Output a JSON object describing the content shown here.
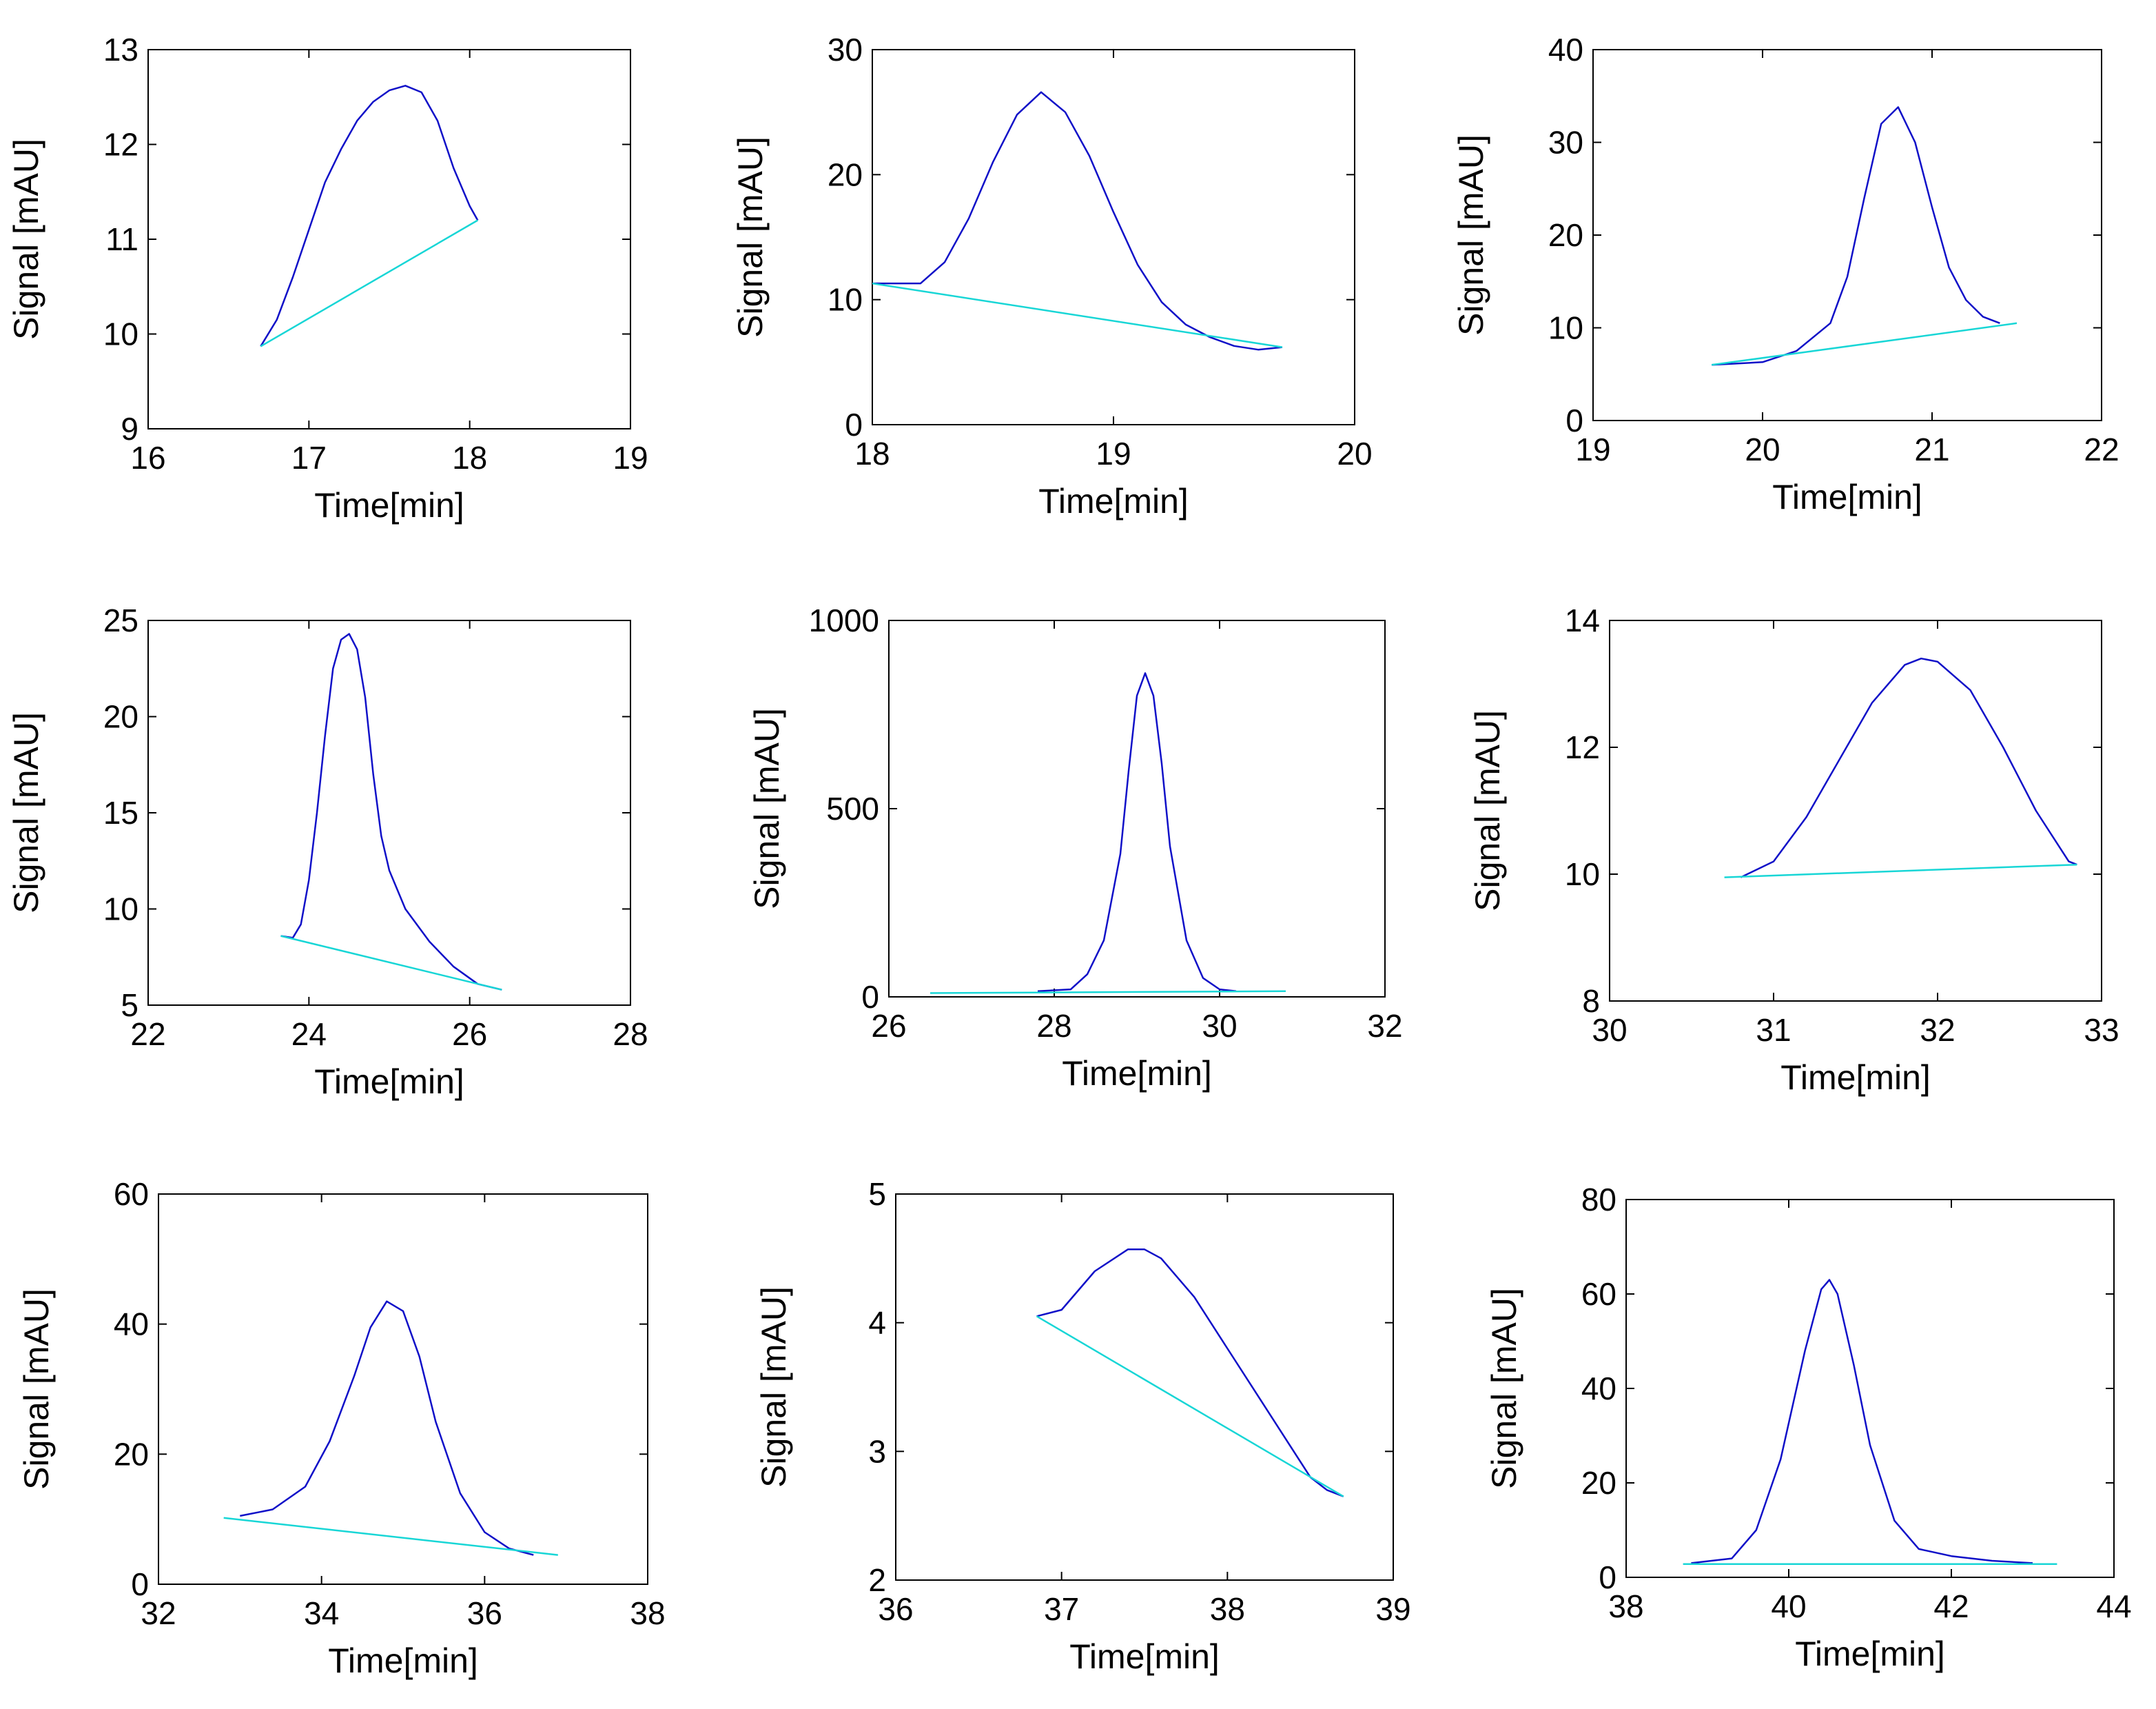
{
  "figure": {
    "colors": {
      "peak": "#1010c8",
      "baseline": "#18d6d6",
      "axes": "#000000"
    }
  },
  "chart_data": [
    {
      "type": "line",
      "xlabel": "Time[min]",
      "ylabel": "Signal [mAU]",
      "xlim": [
        16,
        19
      ],
      "ylim": [
        9,
        13
      ],
      "xticks": [
        "16",
        "17",
        "18",
        "19"
      ],
      "yticks": [
        "9",
        "10",
        "11",
        "12",
        "13"
      ],
      "series": [
        {
          "name": "peak",
          "x": [
            16.7,
            16.8,
            16.9,
            17.0,
            17.1,
            17.2,
            17.3,
            17.4,
            17.5,
            17.6,
            17.7,
            17.8,
            17.9,
            18.0,
            18.05
          ],
          "y": [
            9.87,
            10.15,
            10.6,
            11.1,
            11.6,
            11.95,
            12.25,
            12.45,
            12.57,
            12.62,
            12.55,
            12.25,
            11.75,
            11.35,
            11.2
          ]
        },
        {
          "name": "baseline",
          "x": [
            16.7,
            18.05
          ],
          "y": [
            9.87,
            11.2
          ]
        }
      ]
    },
    {
      "type": "line",
      "xlabel": "Time[min]",
      "ylabel": "Signal [mAU]",
      "xlim": [
        18,
        20
      ],
      "ylim": [
        0,
        30
      ],
      "xticks": [
        "18",
        "19",
        "20"
      ],
      "yticks": [
        "0",
        "10",
        "20",
        "30"
      ],
      "series": [
        {
          "name": "peak",
          "x": [
            18.0,
            18.2,
            18.3,
            18.4,
            18.5,
            18.6,
            18.7,
            18.8,
            18.9,
            19.0,
            19.1,
            19.2,
            19.3,
            19.4,
            19.5,
            19.6,
            19.7
          ],
          "y": [
            11.3,
            11.3,
            13.0,
            16.5,
            21.0,
            24.8,
            26.6,
            25.0,
            21.5,
            17.0,
            12.8,
            9.8,
            8.0,
            7.0,
            6.3,
            6.0,
            6.2
          ]
        },
        {
          "name": "baseline",
          "x": [
            18.0,
            19.7
          ],
          "y": [
            11.3,
            6.2
          ]
        }
      ]
    },
    {
      "type": "line",
      "xlabel": "Time[min]",
      "ylabel": "Signal [mAU]",
      "xlim": [
        19,
        22
      ],
      "ylim": [
        0,
        40
      ],
      "xticks": [
        "19",
        "20",
        "21",
        "22"
      ],
      "yticks": [
        "0",
        "10",
        "20",
        "30",
        "40"
      ],
      "series": [
        {
          "name": "peak",
          "x": [
            19.7,
            20.0,
            20.2,
            20.4,
            20.5,
            20.6,
            20.7,
            20.8,
            20.9,
            21.0,
            21.1,
            21.2,
            21.3,
            21.4
          ],
          "y": [
            6.0,
            6.3,
            7.5,
            10.5,
            15.5,
            24.0,
            32.0,
            33.8,
            30.0,
            23.0,
            16.5,
            13.0,
            11.2,
            10.5
          ]
        },
        {
          "name": "baseline",
          "x": [
            19.7,
            21.5
          ],
          "y": [
            6.0,
            10.5
          ]
        }
      ]
    },
    {
      "type": "line",
      "xlabel": "Time[min]",
      "ylabel": "Signal [mAU]",
      "xlim": [
        22,
        28
      ],
      "ylim": [
        5,
        25
      ],
      "xticks": [
        "22",
        "24",
        "26",
        "28"
      ],
      "yticks": [
        "5",
        "10",
        "15",
        "20",
        "25"
      ],
      "series": [
        {
          "name": "peak",
          "x": [
            23.65,
            23.8,
            23.9,
            24.0,
            24.1,
            24.2,
            24.3,
            24.4,
            24.5,
            24.6,
            24.7,
            24.8,
            24.9,
            25.0,
            25.2,
            25.5,
            25.8,
            26.1,
            26.4
          ],
          "y": [
            8.6,
            8.5,
            9.2,
            11.5,
            15.0,
            19.0,
            22.5,
            24.0,
            24.3,
            23.5,
            21.0,
            17.0,
            13.8,
            12.0,
            10.0,
            8.3,
            7.0,
            6.1,
            5.8
          ]
        },
        {
          "name": "baseline",
          "x": [
            23.65,
            26.4
          ],
          "y": [
            8.6,
            5.8
          ]
        }
      ]
    },
    {
      "type": "line",
      "xlabel": "Time[min]",
      "ylabel": "Signal [mAU]",
      "xlim": [
        26,
        32
      ],
      "ylim": [
        0,
        1000
      ],
      "xticks": [
        "26",
        "28",
        "30",
        "32"
      ],
      "yticks": [
        "0",
        "500",
        "1000"
      ],
      "series": [
        {
          "name": "peak",
          "x": [
            27.8,
            28.2,
            28.4,
            28.6,
            28.8,
            28.9,
            29.0,
            29.1,
            29.2,
            29.3,
            29.4,
            29.6,
            29.8,
            30.0,
            30.2
          ],
          "y": [
            15,
            20,
            60,
            150,
            380,
            600,
            800,
            860,
            800,
            620,
            400,
            150,
            50,
            20,
            15
          ]
        },
        {
          "name": "baseline",
          "x": [
            26.5,
            30.8
          ],
          "y": [
            10,
            15
          ]
        }
      ]
    },
    {
      "type": "line",
      "xlabel": "Time[min]",
      "ylabel": "Signal [mAU]",
      "xlim": [
        30,
        33
      ],
      "ylim": [
        8,
        14
      ],
      "xticks": [
        "30",
        "31",
        "32",
        "33"
      ],
      "yticks": [
        "8",
        "10",
        "12",
        "14"
      ],
      "series": [
        {
          "name": "peak",
          "x": [
            30.8,
            31.0,
            31.2,
            31.4,
            31.6,
            31.8,
            31.9,
            32.0,
            32.2,
            32.4,
            32.6,
            32.8,
            32.85
          ],
          "y": [
            9.95,
            10.2,
            10.9,
            11.8,
            12.7,
            13.3,
            13.4,
            13.35,
            12.9,
            12.0,
            11.0,
            10.2,
            10.15
          ]
        },
        {
          "name": "baseline",
          "x": [
            30.7,
            32.85
          ],
          "y": [
            9.95,
            10.15
          ]
        }
      ]
    },
    {
      "type": "line",
      "xlabel": "Time[min]",
      "ylabel": "Signal [mAU]",
      "xlim": [
        32,
        38
      ],
      "ylim": [
        0,
        60
      ],
      "xticks": [
        "32",
        "34",
        "36",
        "38"
      ],
      "yticks": [
        "0",
        "20",
        "40",
        "60"
      ],
      "series": [
        {
          "name": "peak",
          "x": [
            33.0,
            33.4,
            33.8,
            34.1,
            34.4,
            34.6,
            34.8,
            35.0,
            35.2,
            35.4,
            35.7,
            36.0,
            36.3,
            36.6
          ],
          "y": [
            10.5,
            11.5,
            15.0,
            22.0,
            32.0,
            39.5,
            43.5,
            42.0,
            35.0,
            25.0,
            14.0,
            8.0,
            5.5,
            4.5
          ]
        },
        {
          "name": "baseline",
          "x": [
            32.8,
            36.9
          ],
          "y": [
            10.2,
            4.5
          ]
        }
      ]
    },
    {
      "type": "line",
      "xlabel": "Time[min]",
      "ylabel": "Signal [mAU]",
      "xlim": [
        36,
        39
      ],
      "ylim": [
        2,
        5
      ],
      "xticks": [
        "36",
        "37",
        "38",
        "39"
      ],
      "yticks": [
        "2",
        "3",
        "4",
        "5"
      ],
      "series": [
        {
          "name": "peak",
          "x": [
            36.85,
            37.0,
            37.2,
            37.4,
            37.5,
            37.6,
            37.8,
            38.0,
            38.2,
            38.4,
            38.5,
            38.6,
            38.7
          ],
          "y": [
            4.05,
            4.1,
            4.4,
            4.57,
            4.57,
            4.5,
            4.2,
            3.8,
            3.4,
            3.0,
            2.8,
            2.7,
            2.65
          ]
        },
        {
          "name": "baseline",
          "x": [
            36.85,
            38.7
          ],
          "y": [
            4.05,
            2.65
          ]
        }
      ]
    },
    {
      "type": "line",
      "xlabel": "Time[min]",
      "ylabel": "Signal [mAU]",
      "xlim": [
        38,
        44
      ],
      "ylim": [
        0,
        80
      ],
      "xticks": [
        "38",
        "40",
        "42",
        "44"
      ],
      "yticks": [
        "0",
        "20",
        "40",
        "60",
        "80"
      ],
      "series": [
        {
          "name": "peak",
          "x": [
            38.8,
            39.3,
            39.6,
            39.9,
            40.2,
            40.4,
            40.5,
            40.6,
            40.8,
            41.0,
            41.3,
            41.6,
            42.0,
            42.5,
            43.0
          ],
          "y": [
            3.0,
            4.0,
            10.0,
            25.0,
            48.0,
            61.0,
            63.0,
            60.0,
            45.0,
            28.0,
            12.0,
            6.0,
            4.5,
            3.5,
            3.0
          ]
        },
        {
          "name": "baseline",
          "x": [
            38.7,
            43.3
          ],
          "y": [
            2.8,
            2.8
          ]
        }
      ]
    }
  ]
}
